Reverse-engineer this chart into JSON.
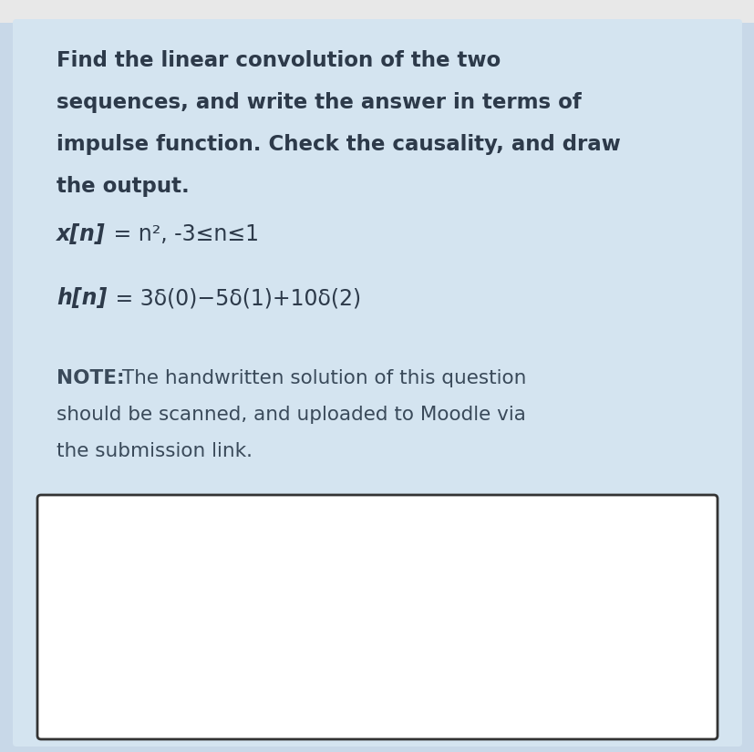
{
  "page_bg": "#c8d8e8",
  "card_bg": "#d4e4f0",
  "white_box_bg": "#ffffff",
  "white_box_border": "#333333",
  "top_strip_bg": "#e8e8e8",
  "title_lines": [
    "Find the linear convolution of the two",
    "sequences, and write the answer in terms of",
    "impulse function. Check the causality, and draw",
    "the output."
  ],
  "eq1_bold_italic": "x[n]",
  "eq1_rest": " = n², -3≤n≤1",
  "eq2_bold_italic": "h[n]",
  "eq2_rest": " = 3δ(0)−5δ(1)+10δ(2)",
  "note_bold": "NOTE:",
  "note_line1_rest": " The handwritten solution of this question",
  "note_line2": "should be scanned, and uploaded to Moodle via",
  "note_line3": "the submission link.",
  "title_color": "#2d3a4a",
  "eq_color": "#2d3a4a",
  "note_color": "#3a4a5a",
  "title_fontsize": 16.5,
  "eq_fontsize": 17.0,
  "note_fontsize": 15.5,
  "figsize": [
    8.28,
    8.25
  ],
  "dpi": 100
}
